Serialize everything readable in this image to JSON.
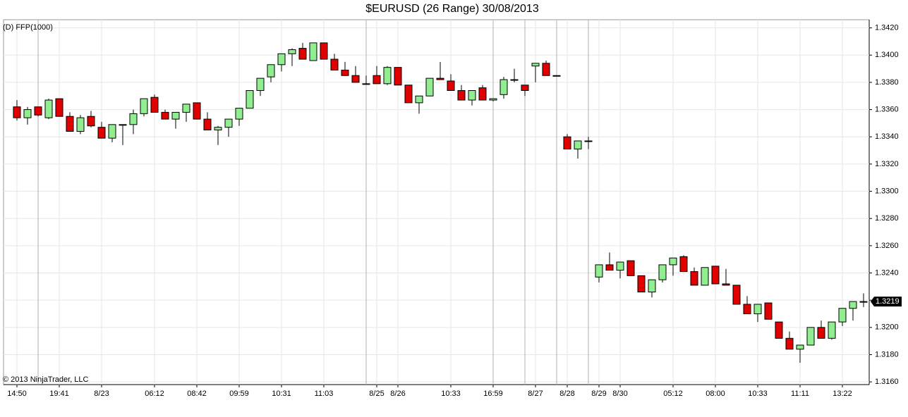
{
  "chart_data": {
    "type": "candlestick",
    "title": "$EURUSD (26 Range)  30/08/2013",
    "indicator": "(D) FFP(1000)",
    "copyright": "© 2013 NinjaTrader, LLC",
    "categories": [
      "14:50",
      null,
      null,
      null,
      "19:41",
      null,
      null,
      null,
      "8/23",
      null,
      null,
      null,
      null,
      "06:12",
      null,
      null,
      null,
      "08:42",
      null,
      null,
      null,
      "09:59",
      null,
      null,
      null,
      "10:31",
      null,
      null,
      null,
      "11:03",
      null,
      null,
      null,
      null,
      "8/25",
      null,
      "8/26",
      null,
      null,
      null,
      null,
      "10:33",
      null,
      null,
      null,
      "16:59",
      null,
      null,
      null,
      "8/27",
      null,
      null,
      "8/28",
      null,
      null,
      "8/29",
      null,
      "8/30",
      null,
      null,
      null,
      null,
      "05:12",
      null,
      null,
      null,
      "08:00",
      null,
      null,
      null,
      "10:33",
      null,
      null,
      null,
      "11:11",
      null,
      null,
      null,
      "13:22",
      null,
      null
    ],
    "open": [
      1.3362,
      1.3354,
      1.3362,
      1.3354,
      1.3368,
      1.3355,
      1.3344,
      1.3355,
      1.3347,
      1.3339,
      1.3349,
      1.3349,
      1.3357,
      1.3369,
      1.3358,
      1.3353,
      1.3358,
      1.3365,
      1.3353,
      1.3345,
      1.3347,
      1.3353,
      1.3361,
      1.3374,
      1.3384,
      1.3393,
      1.3401,
      1.3405,
      1.3396,
      1.3409,
      1.3397,
      1.3389,
      1.3385,
      1.3379,
      1.3385,
      1.3379,
      1.3391,
      1.3378,
      1.3365,
      1.337,
      1.3383,
      1.3381,
      1.3374,
      1.3367,
      1.3376,
      1.3367,
      1.3371,
      1.3382,
      1.3378,
      1.3392,
      1.3394,
      1.3385,
      1.334,
      1.3331,
      1.3337,
      1.3237,
      1.3246,
      1.3242,
      1.3249,
      1.3238,
      1.3226,
      1.3235,
      1.3246,
      1.3252,
      1.3241,
      1.3231,
      1.3245,
      1.3232,
      1.3231,
      1.3217,
      1.321,
      1.3218,
      1.3204,
      1.3192,
      1.3184,
      1.3187,
      1.32,
      1.3192,
      1.3204,
      1.3214,
      1.3219
    ],
    "high": [
      1.3367,
      1.3362,
      1.3362,
      1.3368,
      1.3368,
      1.3358,
      1.3356,
      1.3359,
      1.3351,
      1.3349,
      1.3349,
      1.336,
      1.3368,
      1.3371,
      1.336,
      1.3358,
      1.3364,
      1.3365,
      1.3358,
      1.3348,
      1.3353,
      1.3361,
      1.3374,
      1.3383,
      1.3393,
      1.3401,
      1.3405,
      1.3409,
      1.3409,
      1.3409,
      1.3401,
      1.3395,
      1.3392,
      1.3385,
      1.3392,
      1.3392,
      1.3391,
      1.3378,
      1.337,
      1.3383,
      1.3395,
      1.3386,
      1.3378,
      1.3374,
      1.3378,
      1.3368,
      1.3384,
      1.339,
      1.3378,
      1.3394,
      1.3396,
      1.3385,
      1.3342,
      1.3337,
      1.334,
      1.3246,
      1.3255,
      1.3248,
      1.3249,
      1.3238,
      1.3235,
      1.3246,
      1.3251,
      1.3253,
      1.3244,
      1.3244,
      1.3245,
      1.3243,
      1.3231,
      1.3223,
      1.3217,
      1.3218,
      1.3204,
      1.3197,
      1.3187,
      1.32,
      1.3205,
      1.3204,
      1.3214,
      1.3219,
      1.3225
    ],
    "low": [
      1.3352,
      1.3349,
      1.3355,
      1.3353,
      1.3355,
      1.3344,
      1.3342,
      1.3347,
      1.3339,
      1.3336,
      1.3334,
      1.3342,
      1.3355,
      1.3358,
      1.3353,
      1.3346,
      1.3351,
      1.3353,
      1.3345,
      1.3334,
      1.334,
      1.3348,
      1.3361,
      1.337,
      1.338,
      1.3388,
      1.3392,
      1.3397,
      1.3396,
      1.3397,
      1.3389,
      1.3385,
      1.338,
      1.3379,
      1.3379,
      1.3378,
      1.3378,
      1.3365,
      1.3357,
      1.337,
      1.3382,
      1.3374,
      1.3367,
      1.3363,
      1.3367,
      1.3366,
      1.3368,
      1.338,
      1.337,
      1.338,
      1.3385,
      1.3385,
      1.3331,
      1.3324,
      1.3331,
      1.3233,
      1.3242,
      1.3236,
      1.3238,
      1.3226,
      1.3222,
      1.3233,
      1.3238,
      1.3241,
      1.3231,
      1.3231,
      1.3232,
      1.3231,
      1.3217,
      1.321,
      1.3204,
      1.3206,
      1.3192,
      1.3184,
      1.3174,
      1.3187,
      1.3192,
      1.3191,
      1.3201,
      1.3205,
      1.3215
    ],
    "close": [
      1.3354,
      1.336,
      1.3356,
      1.3367,
      1.3355,
      1.3344,
      1.3354,
      1.3348,
      1.3339,
      1.3349,
      1.3349,
      1.3357,
      1.3368,
      1.3358,
      1.3353,
      1.3358,
      1.3364,
      1.3353,
      1.3345,
      1.3347,
      1.3353,
      1.3361,
      1.3374,
      1.3383,
      1.3393,
      1.3401,
      1.3404,
      1.3397,
      1.3409,
      1.3397,
      1.3389,
      1.3385,
      1.338,
      1.3379,
      1.3379,
      1.3391,
      1.3378,
      1.3365,
      1.337,
      1.3383,
      1.3382,
      1.3374,
      1.3367,
      1.3374,
      1.3367,
      1.3368,
      1.3382,
      1.3382,
      1.3374,
      1.3394,
      1.3385,
      1.3385,
      1.3331,
      1.3337,
      1.3337,
      1.3246,
      1.3242,
      1.3248,
      1.3238,
      1.3226,
      1.3235,
      1.3246,
      1.3251,
      1.3241,
      1.3231,
      1.3244,
      1.3232,
      1.3231,
      1.3217,
      1.321,
      1.3217,
      1.3206,
      1.3192,
      1.3184,
      1.3187,
      1.32,
      1.3192,
      1.3204,
      1.3214,
      1.3219,
      1.3219
    ],
    "up_color": "#90ee90",
    "down_color": "#e00000",
    "ylim": [
      1.3158,
      1.3426
    ],
    "yticks": [
      {
        "value": 1.316,
        "label": "1.3160"
      },
      {
        "value": 1.318,
        "label": "1.3180"
      },
      {
        "value": 1.32,
        "label": "1.3200"
      },
      {
        "value": 1.322,
        "label": "1.3220"
      },
      {
        "value": 1.324,
        "label": "1.3240"
      },
      {
        "value": 1.326,
        "label": "1.3260"
      },
      {
        "value": 1.328,
        "label": "1.3280"
      },
      {
        "value": 1.33,
        "label": "1.3300"
      },
      {
        "value": 1.332,
        "label": "1.3320"
      },
      {
        "value": 1.334,
        "label": "1.3340"
      },
      {
        "value": 1.336,
        "label": "1.3360"
      },
      {
        "value": 1.338,
        "label": "1.3380"
      },
      {
        "value": 1.34,
        "label": "1.3400"
      },
      {
        "value": 1.342,
        "label": "1.3420"
      }
    ],
    "last_price": 1.3219,
    "grid": true
  }
}
